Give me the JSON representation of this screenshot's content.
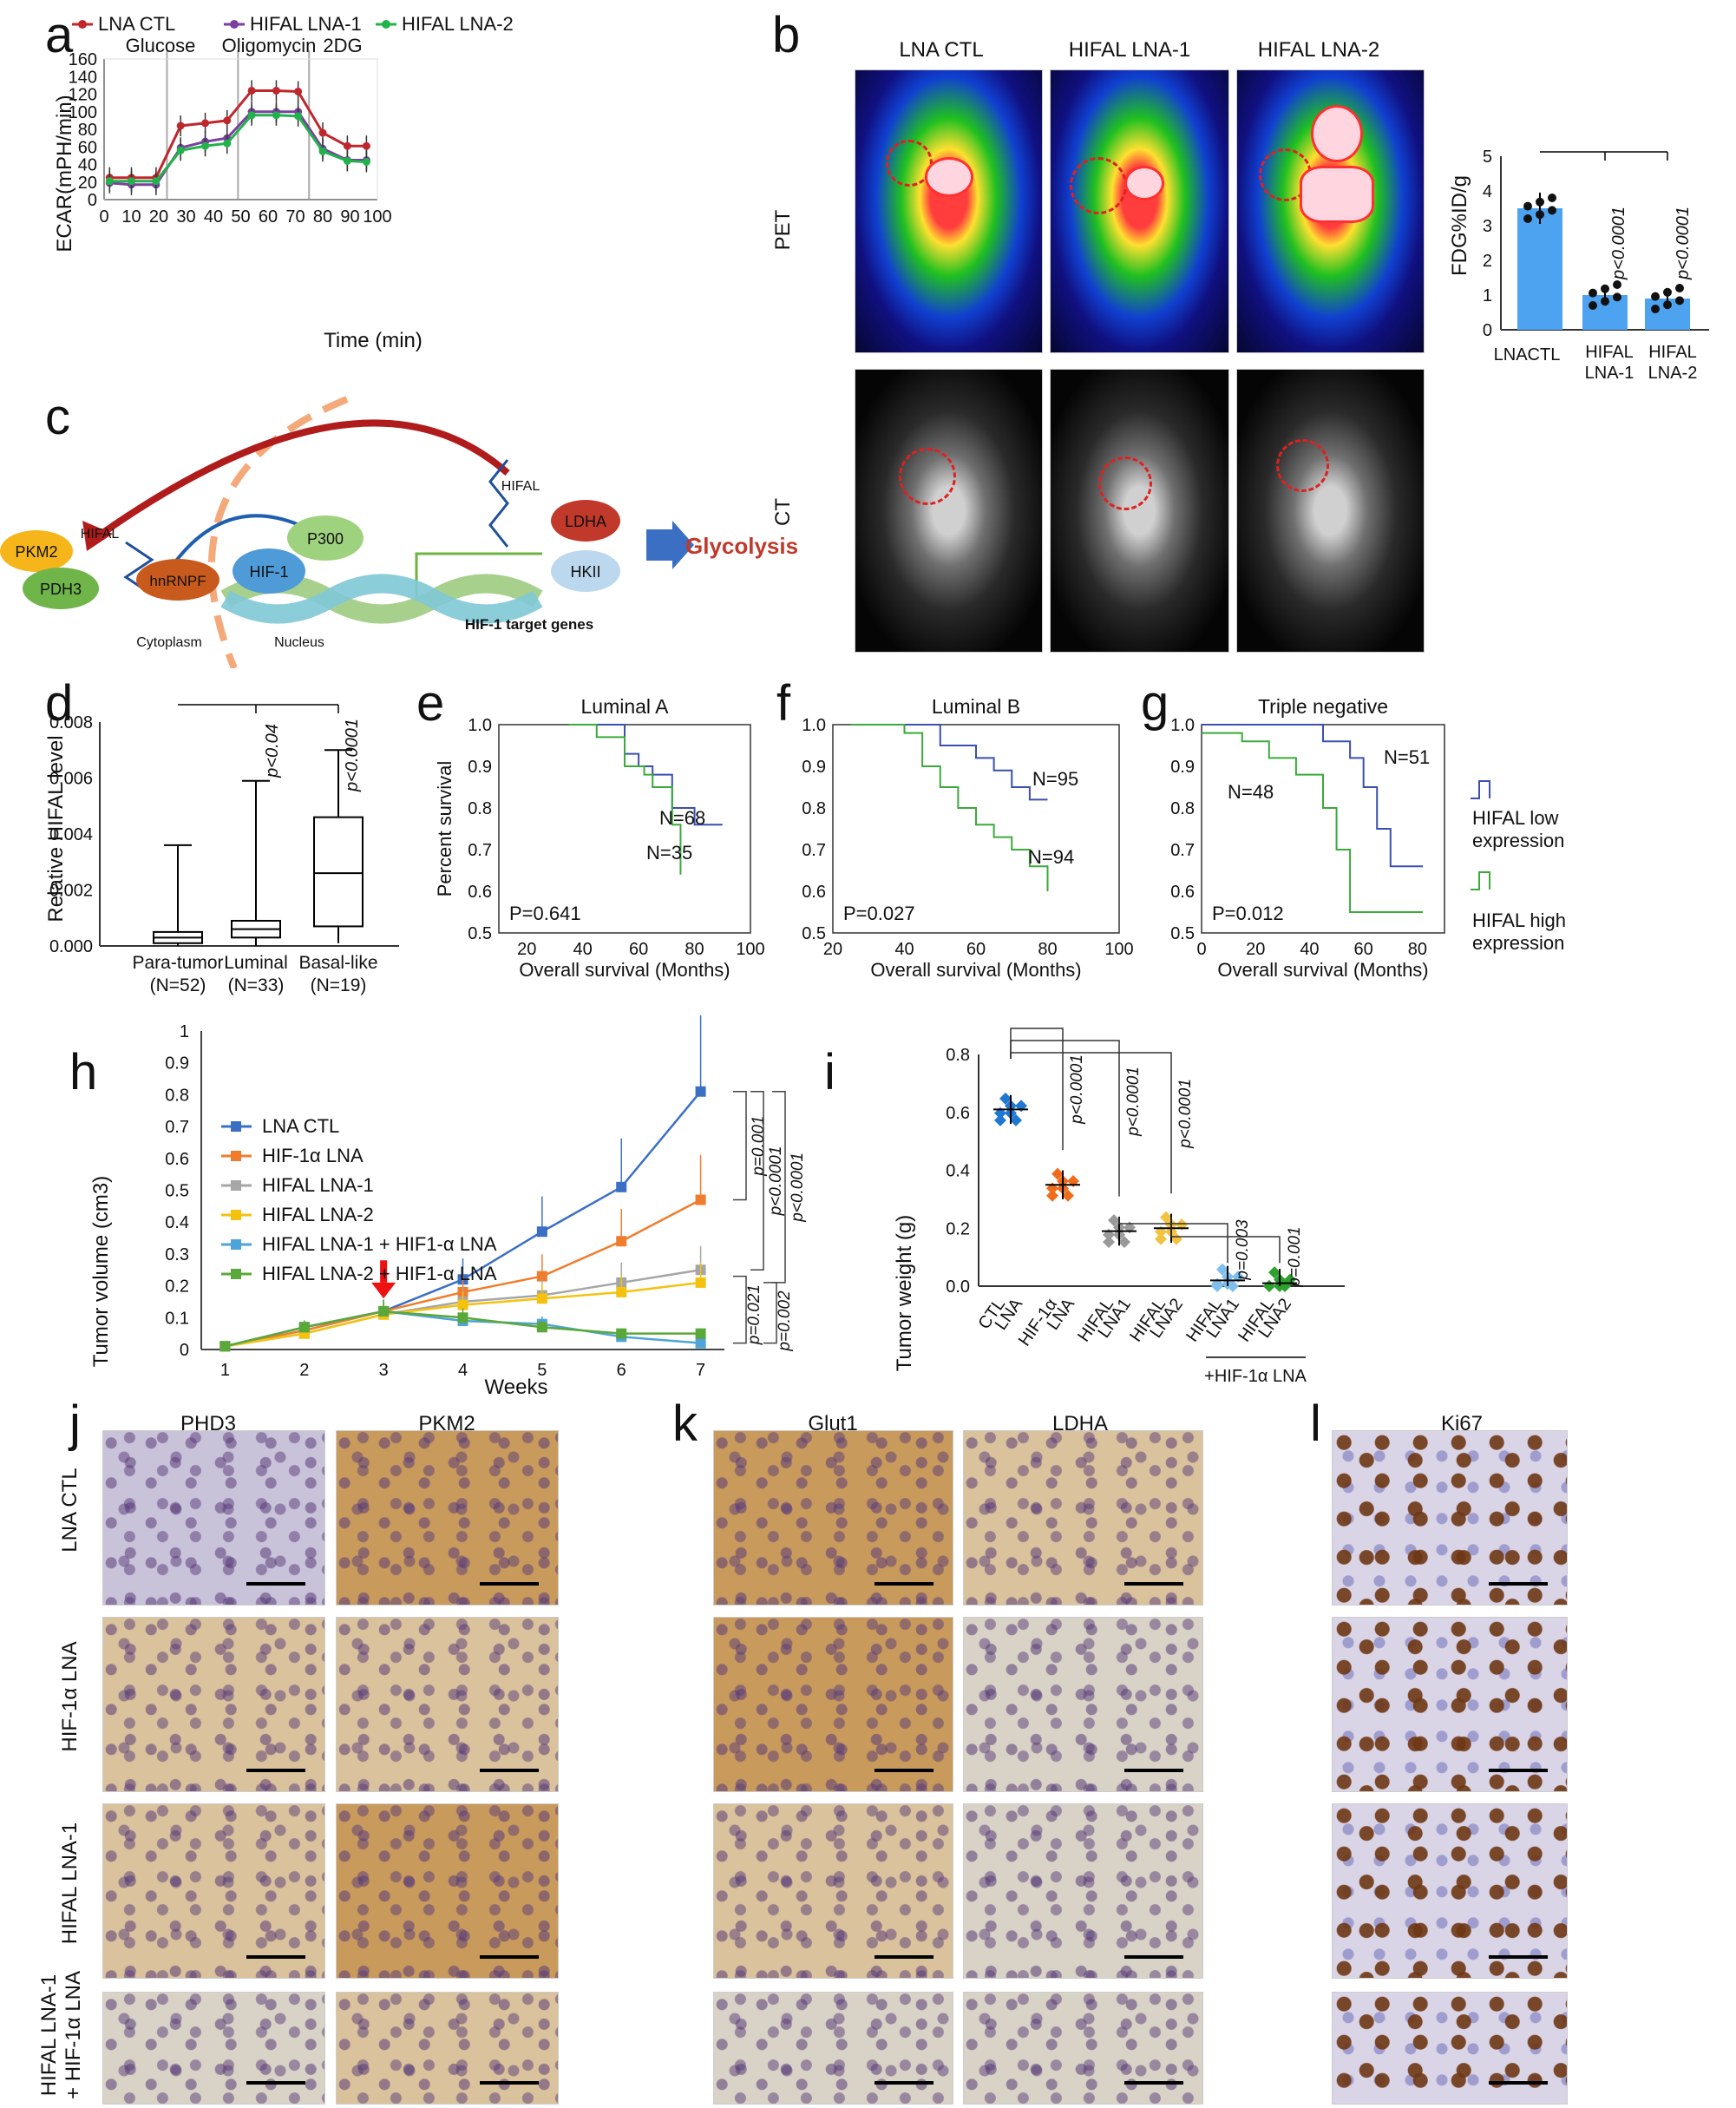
{
  "panels": {
    "a": {
      "letter": "a",
      "legend": [
        "LNA CTL",
        "HIFAL LNA-1",
        "HIFAL LNA-2"
      ],
      "treatments": [
        "Glucose",
        "Oligomycin",
        "2DG"
      ],
      "ylabel": "ECAR(mPH/min)",
      "xlabel": "Time (min)",
      "yticks": [
        "0",
        "20",
        "40",
        "60",
        "80",
        "100",
        "120",
        "140",
        "160"
      ],
      "xticks": [
        "0",
        "10",
        "20",
        "30",
        "40",
        "50",
        "60",
        "70",
        "80",
        "90",
        "100"
      ],
      "colors": [
        "#c0272d",
        "#7b3fa0",
        "#22b24c"
      ]
    },
    "b": {
      "letter": "b",
      "columns": [
        "LNA CTL",
        "HIFAL LNA-1",
        "HIFAL LNA-2"
      ],
      "rows": [
        "PET",
        "CT"
      ],
      "bar_ylabel": "FDG%ID/g",
      "bar_yticks": [
        "0",
        "1",
        "2",
        "3",
        "4",
        "5"
      ],
      "bar_categories": [
        "LNACTL",
        "HIFAL LNA-1",
        "HIFAL LNA-2"
      ],
      "bar_pvals": [
        "p<0.0001",
        "p<0.0001"
      ],
      "bar_color": "#4da3f0"
    },
    "c": {
      "letter": "c",
      "labels": {
        "pkm2": "PKM2",
        "pdh3": "PDH3",
        "hifal_left": "HIFAL",
        "hnrnpf": "hnRNPF",
        "hif1": "HIF-1",
        "p300": "P300",
        "hifal_right": "HIFAL",
        "ldha": "LDHA",
        "hkii": "HKII",
        "glycolysis": "Glycolysis",
        "cytoplasm": "Cytoplasm",
        "nucleus": "Nucleus",
        "targets": "HIF-1 target genes"
      }
    },
    "d": {
      "letter": "d",
      "ylabel": "Relative HIFAL level",
      "yticks": [
        "0.000",
        "0.002",
        "0.004",
        "0.006",
        "0.008"
      ],
      "groups": [
        "Para-tumor",
        "Luminal",
        "Basal-like"
      ],
      "ns": [
        "(N=52)",
        "(N=33)",
        "(N=19)"
      ],
      "pvals": [
        "p<0.04",
        "p<0.0001"
      ]
    },
    "e": {
      "letter": "e",
      "title": "Luminal A",
      "ylabel": "Percent survival",
      "xlabel": "Overall survival (Months)",
      "yticks": [
        "0.5",
        "0.6",
        "0.7",
        "0.8",
        "0.9",
        "1.0"
      ],
      "xticks": [
        "20",
        "40",
        "60",
        "80",
        "100"
      ],
      "n_high": "N=68",
      "n_low": "N=35",
      "p": "P=0.641"
    },
    "f": {
      "letter": "f",
      "title": "Luminal B",
      "xlabel": "Overall survival (Months)",
      "yticks": [
        "0.5",
        "0.6",
        "0.7",
        "0.8",
        "0.9",
        "1.0"
      ],
      "xticks": [
        "20",
        "40",
        "60",
        "80",
        "100"
      ],
      "n_high": "N=95",
      "n_low": "N=94",
      "p": "P=0.027"
    },
    "g": {
      "letter": "g",
      "title": "Triple negative",
      "xlabel": "Overall survival (Months)",
      "yticks": [
        "0.5",
        "0.6",
        "0.7",
        "0.8",
        "0.9",
        "1.0"
      ],
      "xticks": [
        "0",
        "20",
        "40",
        "60",
        "80"
      ],
      "n_high": "N=51",
      "n_low": "N=48",
      "p": "P=0.012",
      "legend_low": [
        "HIFAL low",
        "expression"
      ],
      "legend_high": [
        "HIFAL high",
        "expression"
      ]
    },
    "h": {
      "letter": "h",
      "ylabel": "Tumor volume (cm3)",
      "xlabel": "Weeks",
      "yticks": [
        "0",
        "0.1",
        "0.2",
        "0.3",
        "0.4",
        "0.5",
        "0.6",
        "0.7",
        "0.8",
        "0.9",
        "1"
      ],
      "xticks": [
        "1",
        "2",
        "3",
        "4",
        "5",
        "6",
        "7"
      ],
      "legend": [
        "LNA CTL",
        "HIF-1α LNA",
        "HIFAL LNA-1",
        "HIFAL LNA-2",
        "HIFAL LNA-1 + HIF1-α LNA",
        "HIFAL LNA-2 + HIF1-α LNA"
      ],
      "colors": [
        "#3a6fc4",
        "#ef7d2d",
        "#a6a6a6",
        "#f4c20d",
        "#4ea3d8",
        "#5aa83a"
      ],
      "pvals_right": [
        "p=0.001",
        "p<0.0001",
        "p<0.0001"
      ],
      "pvals_low": [
        "p=0.021",
        "p=0.002"
      ]
    },
    "i": {
      "letter": "i",
      "ylabel": "Tumor weight (g)",
      "yticks": [
        "0.0",
        "0.2",
        "0.4",
        "0.6",
        "0.8"
      ],
      "categories": [
        "CTL LNA",
        "HIF-1α LNA",
        "HIFAL LNA1",
        "HIFAL LNA2",
        "HIFAL LNA1",
        "HIFAL LNA2"
      ],
      "bracket_label": "+HIF-1α LNA",
      "pvals_top": [
        "p<0.0001",
        "p<0.0001",
        "p<0.0001"
      ],
      "pvals_low": [
        "p=0.003",
        "p=0.001"
      ],
      "colors": [
        "#1f78d1",
        "#ef6c1a",
        "#9a9a9a",
        "#f3c240",
        "#7fbfee",
        "#2ea02e"
      ]
    },
    "j": {
      "letter": "j",
      "columns": [
        "PHD3",
        "PKM2"
      ],
      "rows": [
        "LNA CTL",
        "HIF-1α LNA",
        "HIFAL LNA-1",
        "HIFAL LNA-1",
        "+ HIF-1α LNA"
      ]
    },
    "k": {
      "letter": "k",
      "columns": [
        "Glut1",
        "LDHA"
      ]
    },
    "l": {
      "letter": "l",
      "columns": [
        "Ki67"
      ]
    }
  },
  "chart_data": [
    {
      "type": "line",
      "panel": "a",
      "xlabel": "Time (min)",
      "ylabel": "ECAR(mPH/min)",
      "xlim": [
        0,
        100
      ],
      "ylim": [
        0,
        160
      ],
      "x": [
        2,
        10,
        19,
        28,
        37,
        45,
        54,
        63,
        71,
        80,
        89,
        96
      ],
      "series": [
        {
          "name": "LNA CTL",
          "values": [
            25,
            25,
            25,
            84,
            87,
            90,
            124,
            124,
            123,
            76,
            61,
            61
          ]
        },
        {
          "name": "HIFAL LNA-1",
          "values": [
            19,
            17,
            17,
            59,
            66,
            70,
            100,
            100,
            100,
            58,
            45,
            45
          ]
        },
        {
          "name": "HIFAL LNA-2",
          "values": [
            21,
            21,
            21,
            56,
            61,
            64,
            96,
            96,
            95,
            55,
            44,
            43
          ]
        }
      ]
    },
    {
      "type": "bar",
      "panel": "b",
      "categories": [
        "LNACTL",
        "HIFAL LNA-1",
        "HIFAL LNA-2"
      ],
      "values": [
        3.5,
        1.0,
        0.9
      ],
      "errors": [
        0.45,
        0.25,
        0.25
      ],
      "ylabel": "FDG%ID/g",
      "ylim": [
        0,
        5
      ]
    },
    {
      "type": "box",
      "panel": "d",
      "categories": [
        "Para-tumor",
        "Luminal",
        "Basal-like"
      ],
      "min": [
        0.0,
        0.0,
        0.0001
      ],
      "q1": [
        0.0001,
        0.0003,
        0.0007
      ],
      "median": [
        0.0003,
        0.0006,
        0.0026
      ],
      "q3": [
        0.0005,
        0.0009,
        0.0046
      ],
      "max": [
        0.0036,
        0.0059,
        0.007
      ],
      "ylabel": "Relative HIFAL level",
      "ylim": [
        0,
        0.008
      ]
    },
    {
      "type": "line",
      "panel": "e",
      "title": "Luminal A",
      "xlim": [
        10,
        100
      ],
      "ylim": [
        0.5,
        1.0
      ],
      "series": [
        {
          "name": "N=68",
          "color": "#3a4fb0",
          "x": [
            35,
            45,
            55,
            60,
            65,
            72,
            80,
            90
          ],
          "values": [
            1.0,
            1.0,
            0.93,
            0.9,
            0.88,
            0.8,
            0.76,
            0.76
          ]
        },
        {
          "name": "N=35",
          "color": "#3aaa3a",
          "x": [
            35,
            45,
            55,
            62,
            65,
            72,
            75
          ],
          "values": [
            1.0,
            0.97,
            0.9,
            0.88,
            0.85,
            0.76,
            0.64
          ]
        }
      ]
    },
    {
      "type": "line",
      "panel": "f",
      "title": "Luminal B",
      "xlim": [
        20,
        100
      ],
      "ylim": [
        0.5,
        1.0
      ],
      "series": [
        {
          "name": "N=95",
          "color": "#3a4fb0",
          "x": [
            25,
            40,
            50,
            60,
            65,
            70,
            75,
            80
          ],
          "values": [
            1.0,
            1.0,
            0.95,
            0.92,
            0.89,
            0.85,
            0.82,
            0.82
          ]
        },
        {
          "name": "N=94",
          "color": "#3aaa3a",
          "x": [
            25,
            40,
            45,
            50,
            55,
            60,
            65,
            70,
            75,
            80
          ],
          "values": [
            1.0,
            0.98,
            0.9,
            0.85,
            0.8,
            0.76,
            0.73,
            0.7,
            0.66,
            0.6
          ]
        }
      ]
    },
    {
      "type": "line",
      "panel": "g",
      "title": "Triple negative",
      "xlim": [
        0,
        90
      ],
      "ylim": [
        0.5,
        1.0
      ],
      "series": [
        {
          "name": "N=51",
          "color": "#3a4fb0",
          "x": [
            0,
            40,
            45,
            55,
            60,
            65,
            70,
            82
          ],
          "values": [
            1.0,
            1.0,
            0.96,
            0.92,
            0.85,
            0.75,
            0.66,
            0.66
          ]
        },
        {
          "name": "N=48",
          "color": "#3aaa3a",
          "x": [
            0,
            15,
            25,
            35,
            45,
            50,
            55,
            82
          ],
          "values": [
            0.98,
            0.96,
            0.92,
            0.88,
            0.8,
            0.7,
            0.55,
            0.55
          ]
        }
      ]
    },
    {
      "type": "line",
      "panel": "h",
      "xlabel": "Weeks",
      "ylabel": "Tumor volume (cm3)",
      "xlim": [
        1,
        7
      ],
      "ylim": [
        0,
        1
      ],
      "x": [
        1,
        2,
        3,
        4,
        5,
        6,
        7
      ],
      "series": [
        {
          "name": "LNA CTL",
          "values": [
            0.01,
            0.07,
            0.12,
            0.22,
            0.37,
            0.51,
            0.81
          ]
        },
        {
          "name": "HIF-1α LNA",
          "values": [
            0.01,
            0.06,
            0.12,
            0.18,
            0.23,
            0.34,
            0.47
          ]
        },
        {
          "name": "HIFAL LNA-1",
          "values": [
            0.01,
            0.05,
            0.11,
            0.15,
            0.17,
            0.21,
            0.25
          ]
        },
        {
          "name": "HIFAL LNA-2",
          "values": [
            0.01,
            0.05,
            0.11,
            0.14,
            0.16,
            0.18,
            0.21
          ]
        },
        {
          "name": "HIFAL LNA-1 + HIF1-α LNA",
          "values": [
            0.01,
            0.07,
            0.12,
            0.09,
            0.08,
            0.04,
            0.02
          ]
        },
        {
          "name": "HIFAL LNA-2 + HIF1-α LNA",
          "values": [
            0.01,
            0.07,
            0.12,
            0.1,
            0.07,
            0.05,
            0.05
          ]
        }
      ]
    },
    {
      "type": "scatter",
      "panel": "i",
      "categories": [
        "CTL LNA",
        "HIF-1α LNA",
        "HIFAL LNA1",
        "HIFAL LNA2",
        "HIFAL LNA1",
        "HIFAL LNA2"
      ],
      "means": [
        0.61,
        0.35,
        0.19,
        0.2,
        0.02,
        0.01
      ],
      "ylabel": "Tumor weight (g)",
      "ylim": [
        0,
        0.8
      ]
    }
  ]
}
